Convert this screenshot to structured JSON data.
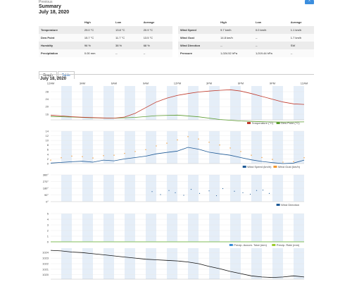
{
  "header": {
    "previous_link": "Previous",
    "title": "Summary",
    "date": "July 18, 2020",
    "corner_button": "^"
  },
  "table_left": {
    "columns": [
      "",
      "High",
      "Low",
      "Average"
    ],
    "rows": [
      [
        "Temperature",
        "29.0 °C",
        "13.8 °C",
        "20.9 °C"
      ],
      [
        "Dew Point",
        "15.7 °C",
        "11.7 °C",
        "13.5 °C"
      ],
      [
        "Humidity",
        "96 %",
        "38 %",
        "68 %"
      ],
      [
        "Precipitation",
        "0.00 mm",
        "--",
        "--"
      ]
    ]
  },
  "table_right": {
    "columns": [
      "",
      "High",
      "Low",
      "Average"
    ],
    "rows": [
      [
        "Wind Speed",
        "9.7 km/h",
        "0.0 km/h",
        "1.1 km/h"
      ],
      [
        "Wind Gust",
        "14.8 km/h",
        "--",
        "1.7 km/h"
      ],
      [
        "Wind Direction",
        "--",
        "--",
        "SW"
      ],
      [
        "Pressure",
        "1,024.52 hPa",
        "1,019.44 hPa",
        "--"
      ]
    ]
  },
  "tabs": [
    {
      "label": "Graph",
      "active": true
    },
    {
      "label": "Table",
      "active": false
    }
  ],
  "chart_date": "July 18, 2020",
  "colors": {
    "temperature": "#c0392b",
    "dew_point": "#5b9b2e",
    "wind_speed": "#1f5a96",
    "wind_gust": "#f0962e",
    "wind_direction": "#1f5a96",
    "precip_total": "#3a8fd8",
    "precip_rate": "#9bcc2e",
    "pressure": "#111111",
    "band": "#e5eef8"
  },
  "chart_data": [
    {
      "type": "line",
      "x_ticks": [
        "12AM",
        "4AM",
        "8AM",
        "12PM",
        "4PM",
        "8PM",
        "12AM"
      ],
      "x_ticks_top": [
        "12AM",
        "3AM",
        "6AM",
        "9AM",
        "12PM",
        "3PM",
        "6PM",
        "9PM",
        "12AM"
      ],
      "y_ticks": [
        16,
        20,
        24,
        28
      ],
      "ylim": [
        13,
        31
      ],
      "series": [
        {
          "name": "Temperature (°C)",
          "hours": [
            0,
            1,
            2,
            3,
            4,
            5,
            6,
            7,
            8,
            9,
            10,
            11,
            12,
            13,
            14,
            15,
            16,
            17,
            18,
            19,
            20,
            21,
            22,
            23,
            24
          ],
          "values": [
            15.5,
            15.1,
            14.7,
            14.4,
            14.2,
            14.0,
            13.9,
            14.5,
            16.5,
            19.5,
            22.5,
            24.5,
            26.0,
            27.0,
            27.8,
            28.3,
            28.7,
            29.0,
            28.3,
            27.0,
            25.5,
            24.0,
            22.5,
            21.5,
            21.2
          ]
        },
        {
          "name": "Dew Point (°C)",
          "hours": [
            0,
            2,
            4,
            6,
            8,
            10,
            12,
            14,
            16,
            18,
            20,
            22,
            24
          ],
          "values": [
            14.8,
            14.5,
            14.1,
            13.9,
            14.3,
            15.2,
            15.5,
            14.6,
            13.2,
            12.4,
            12.0,
            11.8,
            11.9
          ]
        }
      ]
    },
    {
      "type": "line",
      "y_ticks": [
        0,
        2,
        4,
        6,
        8,
        10,
        12,
        14
      ],
      "ylim": [
        0,
        14
      ],
      "series": [
        {
          "name": "Wind Speed (km/h)",
          "hours": [
            0,
            1,
            2,
            3,
            4,
            5,
            6,
            7,
            8,
            9,
            10,
            11,
            12,
            13,
            14,
            15,
            16,
            17,
            18,
            19,
            20,
            21,
            22,
            23,
            24
          ],
          "values": [
            0.2,
            0.5,
            0.8,
            1.0,
            0.6,
            1.5,
            1.2,
            2.0,
            2.6,
            3.2,
            4.2,
            4.8,
            5.4,
            7.0,
            6.2,
            4.9,
            4.2,
            3.6,
            2.6,
            1.6,
            0.9,
            0.4,
            0.0,
            0.2,
            1.5
          ]
        },
        {
          "name": "Wind Gust (km/h)",
          "hours": [
            0,
            1,
            2,
            3,
            4,
            5,
            6,
            7,
            8,
            9,
            10,
            11,
            12,
            13,
            14,
            15,
            16,
            17,
            18,
            19,
            20,
            21,
            22,
            23,
            24
          ],
          "values": [
            1.5,
            2.5,
            3.2,
            3.0,
            2.4,
            3.4,
            3.6,
            4.4,
            5.2,
            6.0,
            7.6,
            8.8,
            10.2,
            11.6,
            10.6,
            9.2,
            8.0,
            6.7,
            5.2,
            3.6,
            2.6,
            1.8,
            0.6,
            0.8,
            2.5
          ]
        }
      ]
    },
    {
      "type": "scatter",
      "y_ticks": [
        0,
        90,
        180,
        270,
        360
      ],
      "y_tick_labels": [
        "0°",
        "90°",
        "180°",
        "270°",
        "360°"
      ],
      "ylim": [
        0,
        360
      ],
      "series": [
        {
          "name": "Wind Direction",
          "hours": [
            9.6,
            10.4,
            11.2,
            11.8,
            12.6,
            13.3,
            14.1,
            15.0,
            15.7,
            16.3,
            17.4,
            18.2,
            18.9,
            19.5,
            20.1,
            20.7
          ],
          "values": [
            135,
            95,
            150,
            120,
            85,
            165,
            110,
            145,
            80,
            175,
            140,
            120,
            100,
            150,
            155,
            110
          ]
        }
      ]
    },
    {
      "type": "line",
      "y_ticks": [
        0,
        1,
        2,
        3,
        4,
        5
      ],
      "ylim": [
        0,
        5
      ],
      "series": [
        {
          "name": "Precip. Accum. Total (mm)",
          "hours": [
            0,
            24
          ],
          "values": [
            0,
            0
          ]
        },
        {
          "name": "Precip. Rate (mm)",
          "hours": [
            0,
            24
          ],
          "values": [
            0,
            0
          ]
        }
      ]
    },
    {
      "type": "line",
      "y_ticks": [
        1020,
        1021,
        1022,
        1023,
        1024
      ],
      "ylim": [
        1019.2,
        1024.8
      ],
      "series": [
        {
          "name": "Pressure",
          "hours": [
            0,
            1,
            2,
            3,
            4,
            5,
            6,
            7,
            8,
            9,
            10,
            11,
            12,
            13,
            14,
            15,
            16,
            17,
            18,
            19,
            20,
            21,
            22,
            23,
            24
          ],
          "values": [
            1024.4,
            1024.3,
            1024.1,
            1024.0,
            1023.8,
            1023.6,
            1023.4,
            1023.2,
            1023.0,
            1022.8,
            1022.7,
            1022.6,
            1022.5,
            1022.3,
            1022.0,
            1021.5,
            1021.1,
            1020.6,
            1020.2,
            1019.8,
            1019.6,
            1019.5,
            1019.6,
            1019.8,
            1019.6
          ]
        }
      ]
    }
  ]
}
